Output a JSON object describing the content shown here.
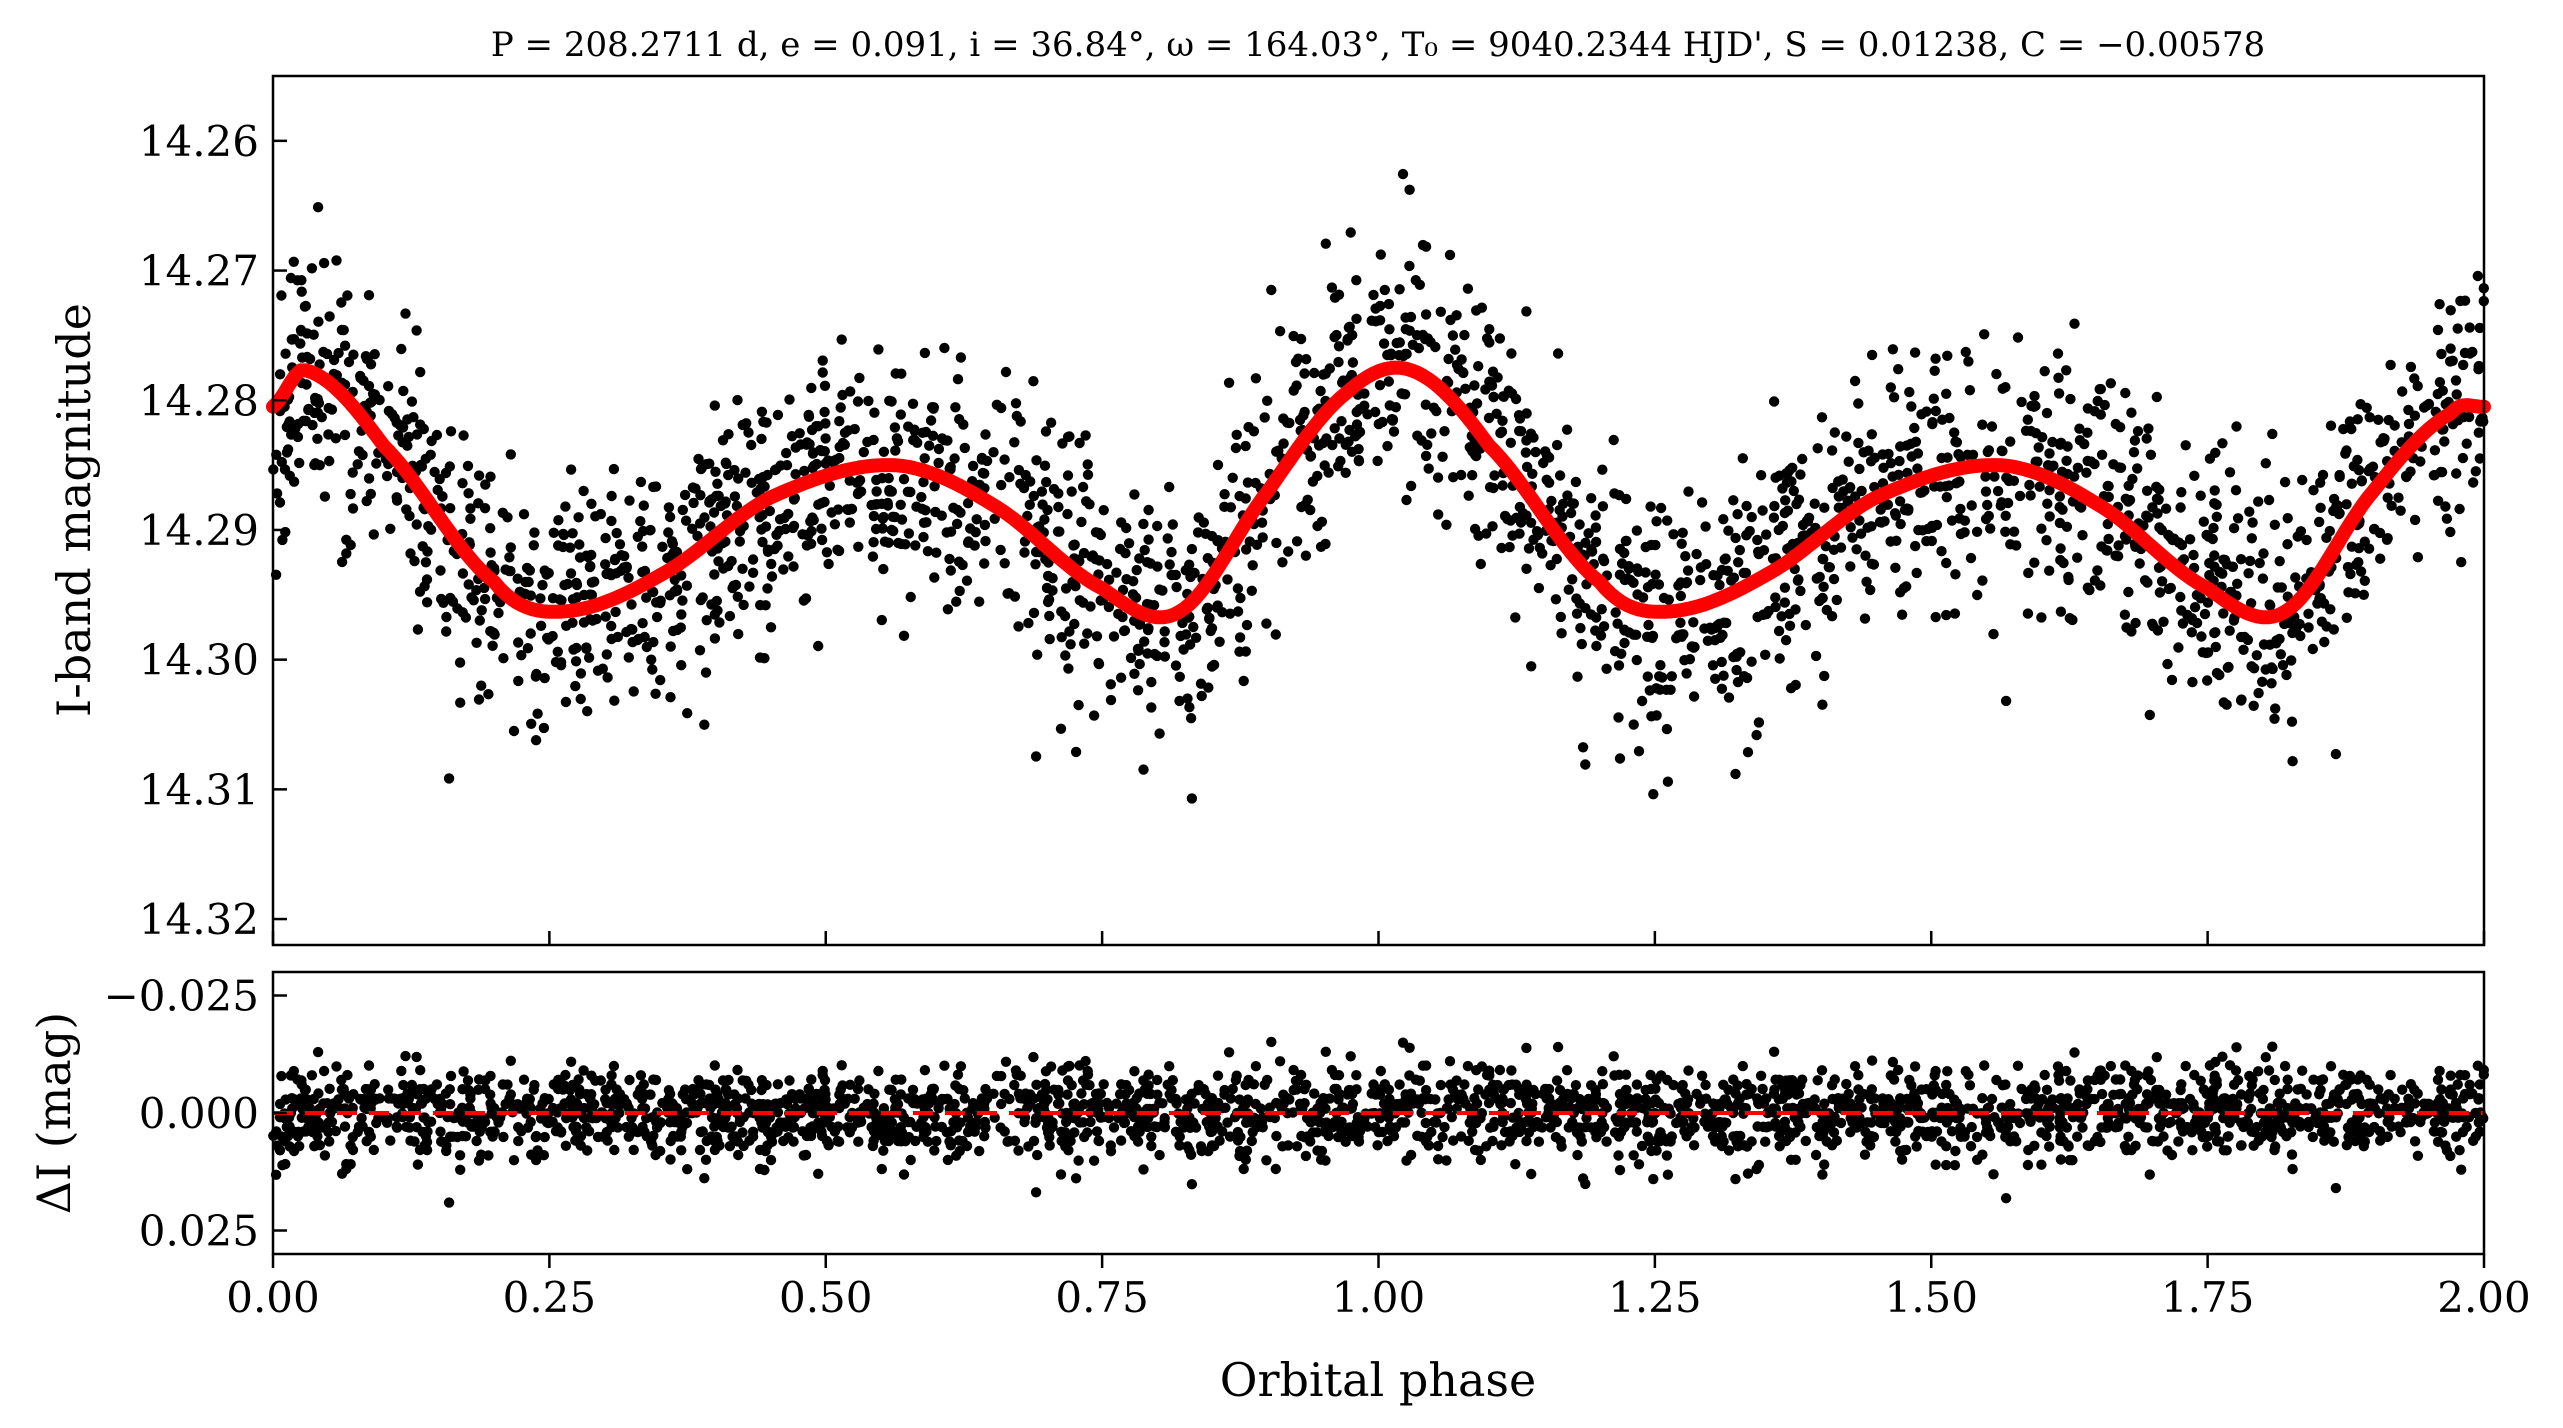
{
  "title": "P = 208.2711 d, e = 0.091, i = 36.84°, ω = 164.03°, T₀ = 9040.2344 HJD', S = 0.01238, C = −0.00578",
  "colors": {
    "data": "#000000",
    "model": "#ff0000",
    "zero_line": "#ff0000"
  },
  "chart_data": [
    {
      "type": "scatter",
      "panel": "top",
      "ylabel": "I-band magnitude",
      "xlim": [
        0,
        2
      ],
      "ylim": [
        14.322,
        14.255
      ],
      "y_inverted": true,
      "ytick_labels": [
        "14.26",
        "14.27",
        "14.28",
        "14.29",
        "14.30",
        "14.31",
        "14.32"
      ],
      "yticks": [
        14.26,
        14.27,
        14.28,
        14.29,
        14.3,
        14.31,
        14.32
      ],
      "model": {
        "x": [
          0.0,
          0.03,
          0.1,
          0.2,
          0.26,
          0.35,
          0.45,
          0.56,
          0.65,
          0.75,
          0.82,
          0.9,
          0.97,
          1.03,
          1.1,
          1.2,
          1.26,
          1.35,
          1.45,
          1.56,
          1.65,
          1.75,
          1.82,
          1.9,
          1.97,
          2.0
        ],
        "y": [
          14.2805,
          14.2777,
          14.2835,
          14.294,
          14.2963,
          14.2935,
          14.2875,
          14.285,
          14.288,
          14.2945,
          14.2963,
          14.287,
          14.2795,
          14.2777,
          14.2835,
          14.294,
          14.2963,
          14.2935,
          14.2875,
          14.285,
          14.288,
          14.2945,
          14.2963,
          14.287,
          14.281,
          14.2805
        ]
      },
      "points_note": "dense photometric points scattered ±0.012 mag around the model"
    },
    {
      "type": "scatter",
      "panel": "bottom",
      "xlabel": "Orbital phase",
      "ylabel": "ΔI (mag)",
      "xlim": [
        0,
        2
      ],
      "ylim": [
        0.03,
        -0.03
      ],
      "y_inverted": true,
      "xticks": [
        0,
        0.25,
        0.5,
        0.75,
        1.0,
        1.25,
        1.5,
        1.75,
        2.0
      ],
      "xtick_labels": [
        "0.00",
        "0.25",
        "0.50",
        "0.75",
        "1.00",
        "1.25",
        "1.50",
        "1.75",
        "2.00"
      ],
      "yticks": [
        -0.025,
        0.0,
        0.025
      ],
      "ytick_labels": [
        "−0.025",
        "0.000",
        "0.025"
      ],
      "zero_line": 0.0
    }
  ]
}
